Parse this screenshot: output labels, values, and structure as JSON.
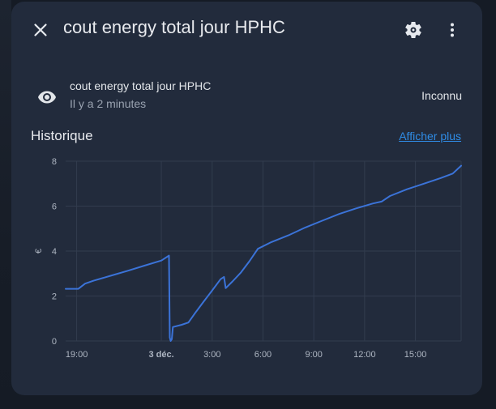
{
  "dialog": {
    "title": "cout energy total jour HPHC",
    "icons": {
      "close": "close-icon",
      "settings": "gear-icon",
      "more": "dots-vertical-icon"
    }
  },
  "entity": {
    "icon": "eye-icon",
    "name": "cout energy total jour HPHC",
    "last_changed": "Il y a 2 minutes",
    "state": "Inconnu"
  },
  "history": {
    "title": "Historique",
    "show_more": "Afficher plus"
  },
  "colors": {
    "background": "#222b3c",
    "accent": "#2f8ce6",
    "series": "#3b73d8"
  },
  "chart_data": {
    "type": "line",
    "ylabel": "€",
    "ylim": [
      0,
      8
    ],
    "y_ticks": [
      "0",
      "2",
      "4",
      "6",
      "8"
    ],
    "x_ticks": [
      "19:00",
      "3 déc.",
      "3:00",
      "6:00",
      "9:00",
      "12:00",
      "15:00"
    ],
    "x_tick_bold": [
      false,
      true,
      false,
      false,
      false,
      false,
      false
    ],
    "xlim_hours": [
      18.35,
      41.7
    ],
    "grid": true,
    "series": [
      {
        "points": [
          [
            18.35,
            2.32
          ],
          [
            19.1,
            2.32
          ],
          [
            19.5,
            2.55
          ],
          [
            20.0,
            2.68
          ],
          [
            21.0,
            2.9
          ],
          [
            22.0,
            3.12
          ],
          [
            23.0,
            3.35
          ],
          [
            24.0,
            3.58
          ],
          [
            24.45,
            3.8
          ],
          [
            24.5,
            0.15
          ],
          [
            24.55,
            0.0
          ],
          [
            24.62,
            0.08
          ],
          [
            24.68,
            0.62
          ],
          [
            25.2,
            0.72
          ],
          [
            25.6,
            0.82
          ],
          [
            26.0,
            1.25
          ],
          [
            26.5,
            1.75
          ],
          [
            27.0,
            2.25
          ],
          [
            27.5,
            2.75
          ],
          [
            27.7,
            2.85
          ],
          [
            27.8,
            2.35
          ],
          [
            28.2,
            2.65
          ],
          [
            28.7,
            3.05
          ],
          [
            29.2,
            3.55
          ],
          [
            29.7,
            4.1
          ],
          [
            30.5,
            4.4
          ],
          [
            31.5,
            4.7
          ],
          [
            32.5,
            5.05
          ],
          [
            33.5,
            5.35
          ],
          [
            34.5,
            5.65
          ],
          [
            35.5,
            5.9
          ],
          [
            36.5,
            6.12
          ],
          [
            37.0,
            6.2
          ],
          [
            37.5,
            6.45
          ],
          [
            38.5,
            6.75
          ],
          [
            39.5,
            7.0
          ],
          [
            40.5,
            7.25
          ],
          [
            41.2,
            7.45
          ],
          [
            41.7,
            7.8
          ]
        ]
      }
    ]
  }
}
